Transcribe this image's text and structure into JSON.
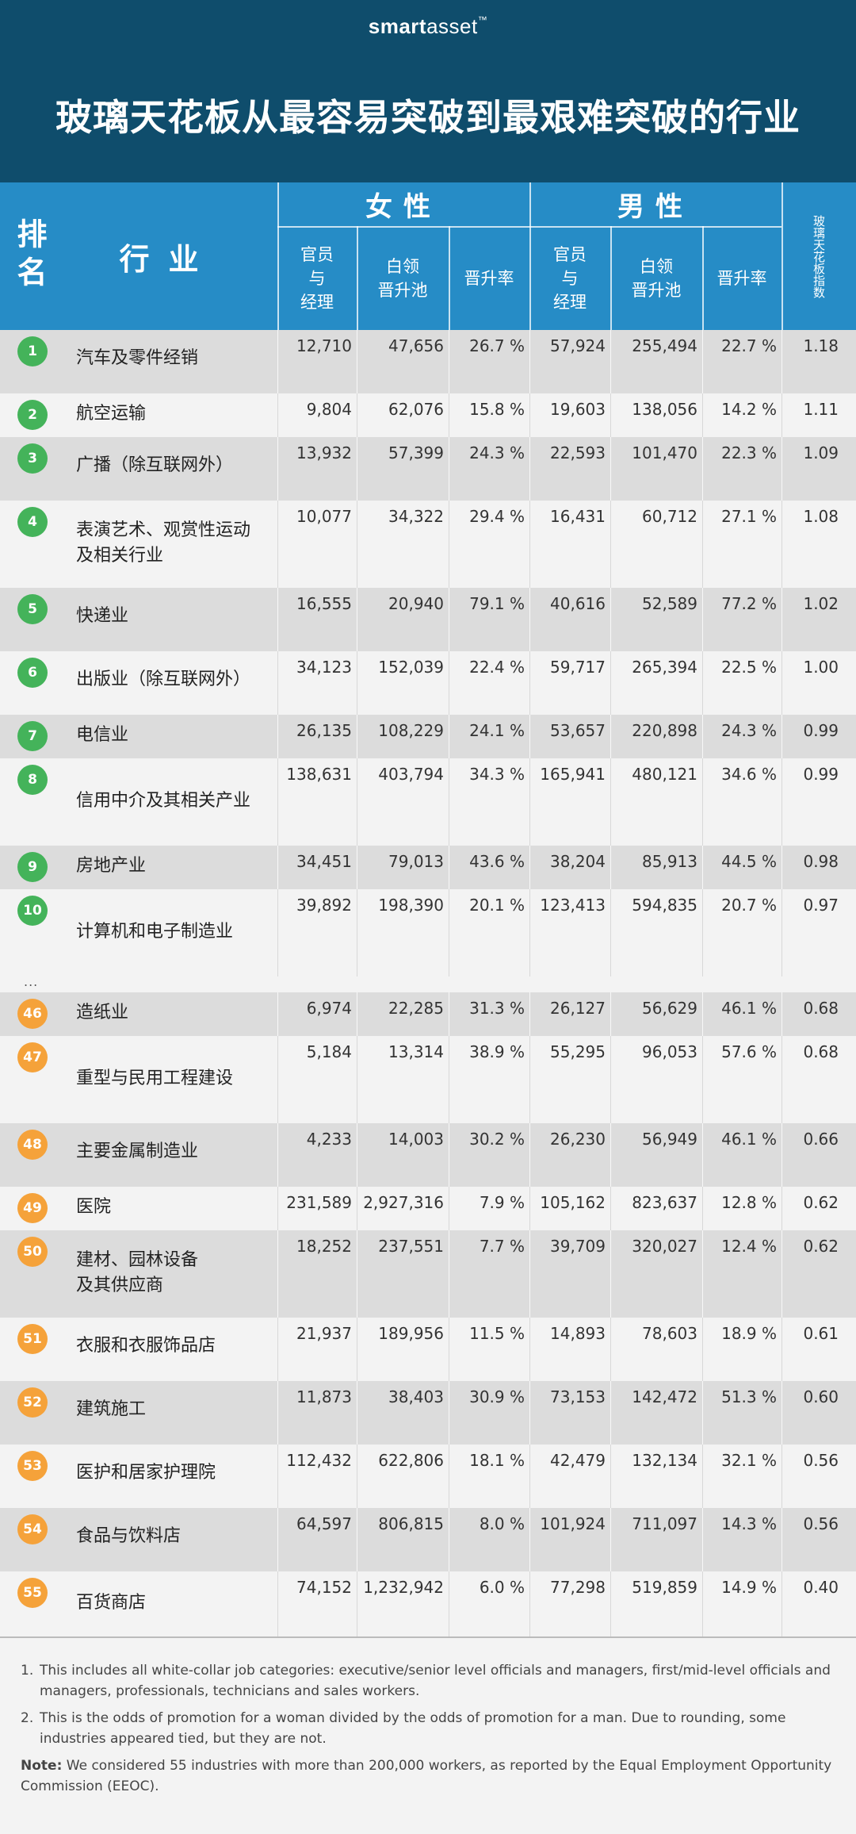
{
  "brand": {
    "part1": "smart",
    "part2": "asset",
    "tm": "™"
  },
  "title": "玻璃天花板从最容易突破到最艰难突破的行业",
  "header": {
    "rank": "排名",
    "industry": "行业",
    "women": "女性",
    "men": "男性",
    "officials": "官员\n与\n经理",
    "pool": "白领\n晋升池",
    "rate": "晋升率",
    "glass_index": "玻璃天花板指数"
  },
  "rows": [
    {
      "rank": "1",
      "industry": "汽车及零件经销",
      "w_mgr": "12,710",
      "w_pool": "47,656",
      "w_rate": "26.7 %",
      "m_mgr": "57,924",
      "m_pool": "255,494",
      "m_rate": "22.7 %",
      "index": "1.18"
    },
    {
      "rank": "2",
      "industry": "航空运输",
      "w_mgr": "9,804",
      "w_pool": "62,076",
      "w_rate": "15.8 %",
      "m_mgr": "19,603",
      "m_pool": "138,056",
      "m_rate": "14.2 %",
      "index": "1.11"
    },
    {
      "rank": "3",
      "industry": "广播（除互联网外）",
      "w_mgr": "13,932",
      "w_pool": "57,399",
      "w_rate": "24.3 %",
      "m_mgr": "22,593",
      "m_pool": "101,470",
      "m_rate": "22.3 %",
      "index": "1.09"
    },
    {
      "rank": "4",
      "industry": "表演艺术、观赏性运动\n及相关行业",
      "w_mgr": "10,077",
      "w_pool": "34,322",
      "w_rate": "29.4 %",
      "m_mgr": "16,431",
      "m_pool": "60,712",
      "m_rate": "27.1 %",
      "index": "1.08"
    },
    {
      "rank": "5",
      "industry": "快递业",
      "w_mgr": "16,555",
      "w_pool": "20,940",
      "w_rate": "79.1 %",
      "m_mgr": "40,616",
      "m_pool": "52,589",
      "m_rate": "77.2 %",
      "index": "1.02"
    },
    {
      "rank": "6",
      "industry": "出版业（除互联网外）",
      "w_mgr": "34,123",
      "w_pool": "152,039",
      "w_rate": "22.4 %",
      "m_mgr": "59,717",
      "m_pool": "265,394",
      "m_rate": "22.5 %",
      "index": "1.00"
    },
    {
      "rank": "7",
      "industry": "电信业",
      "w_mgr": "26,135",
      "w_pool": "108,229",
      "w_rate": "24.1 %",
      "m_mgr": "53,657",
      "m_pool": "220,898",
      "m_rate": "24.3 %",
      "index": "0.99"
    },
    {
      "rank": "8",
      "industry": "信用中介及其相关产业",
      "w_mgr": "138,631",
      "w_pool": "403,794",
      "w_rate": "34.3 %",
      "m_mgr": "165,941",
      "m_pool": "480,121",
      "m_rate": "34.6 %",
      "index": "0.99"
    },
    {
      "rank": "9",
      "industry": "房地产业",
      "w_mgr": "34,451",
      "w_pool": "79,013",
      "w_rate": "43.6 %",
      "m_mgr": "38,204",
      "m_pool": "85,913",
      "m_rate": "44.5 %",
      "index": "0.98"
    },
    {
      "rank": "10",
      "industry": "计算机和电子制造业",
      "w_mgr": "39,892",
      "w_pool": "198,390",
      "w_rate": "20.1 %",
      "m_mgr": "123,413",
      "m_pool": "594,835",
      "m_rate": "20.7 %",
      "index": "0.97"
    },
    {
      "rank": "46",
      "industry": "造纸业",
      "w_mgr": "6,974",
      "w_pool": "22,285",
      "w_rate": "31.3 %",
      "m_mgr": "26,127",
      "m_pool": "56,629",
      "m_rate": "46.1 %",
      "index": "0.68"
    },
    {
      "rank": "47",
      "industry": "重型与民用工程建设",
      "w_mgr": "5,184",
      "w_pool": "13,314",
      "w_rate": "38.9 %",
      "m_mgr": "55,295",
      "m_pool": "96,053",
      "m_rate": "57.6 %",
      "index": "0.68"
    },
    {
      "rank": "48",
      "industry": "主要金属制造业",
      "w_mgr": "4,233",
      "w_pool": "14,003",
      "w_rate": "30.2 %",
      "m_mgr": "26,230",
      "m_pool": "56,949",
      "m_rate": "46.1 %",
      "index": "0.66"
    },
    {
      "rank": "49",
      "industry": "医院",
      "w_mgr": "231,589",
      "w_pool": "2,927,316",
      "w_rate": "7.9 %",
      "m_mgr": "105,162",
      "m_pool": "823,637",
      "m_rate": "12.8 %",
      "index": "0.62"
    },
    {
      "rank": "50",
      "industry": "建材、园林设备\n及其供应商",
      "w_mgr": "18,252",
      "w_pool": "237,551",
      "w_rate": "7.7 %",
      "m_mgr": "39,709",
      "m_pool": "320,027",
      "m_rate": "12.4 %",
      "index": "0.62"
    },
    {
      "rank": "51",
      "industry": "衣服和衣服饰品店",
      "w_mgr": "21,937",
      "w_pool": "189,956",
      "w_rate": "11.5 %",
      "m_mgr": "14,893",
      "m_pool": "78,603",
      "m_rate": "18.9 %",
      "index": "0.61"
    },
    {
      "rank": "52",
      "industry": "建筑施工",
      "w_mgr": "11,873",
      "w_pool": "38,403",
      "w_rate": "30.9 %",
      "m_mgr": "73,153",
      "m_pool": "142,472",
      "m_rate": "51.3 %",
      "index": "0.60"
    },
    {
      "rank": "53",
      "industry": "医护和居家护理院",
      "w_mgr": "112,432",
      "w_pool": "622,806",
      "w_rate": "18.1 %",
      "m_mgr": "42,479",
      "m_pool": "132,134",
      "m_rate": "32.1 %",
      "index": "0.56"
    },
    {
      "rank": "54",
      "industry": "食品与饮料店",
      "w_mgr": "64,597",
      "w_pool": "806,815",
      "w_rate": "8.0 %",
      "m_mgr": "101,924",
      "m_pool": "711,097",
      "m_rate": "14.3 %",
      "index": "0.56"
    },
    {
      "rank": "55",
      "industry": "百货商店",
      "w_mgr": "74,152",
      "w_pool": "1,232,942",
      "w_rate": "6.0 %",
      "m_mgr": "77,298",
      "m_pool": "519,859",
      "m_rate": "14.9 %",
      "index": "0.40"
    }
  ],
  "ellipsis": "...",
  "footnotes": {
    "n1": "1.",
    "f1": "This includes all white-collar job categories: executive/senior level officials and managers, first/mid-level officials and managers, professionals, technicians and sales workers.",
    "n2": "2.",
    "f2": "This is the odds of promotion for a woman divided by the odds of promotion for a man. Due to rounding, some industries appeared tied, but they are not.",
    "note_label": "Note:",
    "note": " We considered 55 industries with more than 200,000 workers, as reported by the Equal Employment Opportunity Commission (EEOC)."
  },
  "colors": {
    "header_bg": "#0f4d6c",
    "table_header": "#268cc6",
    "top_badge": "#44b35a",
    "bottom_badge": "#f5a23a"
  }
}
